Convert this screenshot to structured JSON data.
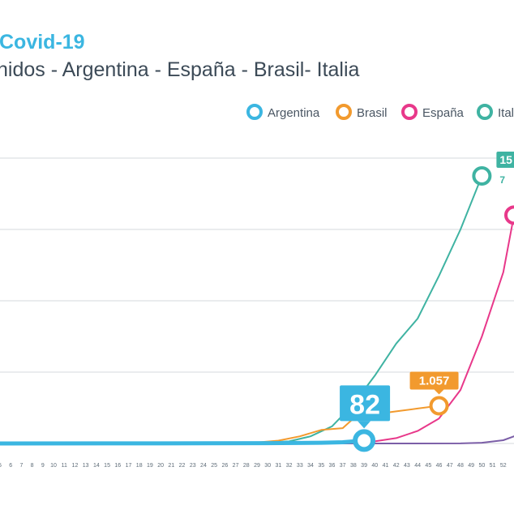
{
  "title": "Covid-19",
  "subtitle": "nidos - Argentina - España - Brasil- Italia",
  "chart_data": {
    "type": "line",
    "xlim": [
      5,
      53
    ],
    "ylim": [
      0,
      8000
    ],
    "grid": true,
    "legend_position": "top-right",
    "x_tick_labels": [
      "5",
      "6",
      "7",
      "8",
      "9",
      "10",
      "11",
      "12",
      "13",
      "14",
      "15",
      "16",
      "17",
      "18",
      "19",
      "20",
      "21",
      "22",
      "23",
      "24",
      "25",
      "26",
      "27",
      "28",
      "29",
      "30",
      "31",
      "32",
      "33",
      "34",
      "35",
      "36",
      "37",
      "38",
      "39",
      "40",
      "41",
      "42",
      "43",
      "44",
      "45",
      "46",
      "47",
      "48",
      "49",
      "50",
      "51",
      "52"
    ],
    "series": [
      {
        "name": "Argentina",
        "color": "#3bb6e1",
        "points": [
          [
            5,
            0
          ],
          [
            20,
            2
          ],
          [
            30,
            8
          ],
          [
            35,
            20
          ],
          [
            37,
            35
          ],
          [
            39,
            82
          ]
        ],
        "end_label": "82"
      },
      {
        "name": "Brasil",
        "color": "#f29a2e",
        "points": [
          [
            5,
            0
          ],
          [
            25,
            5
          ],
          [
            29,
            30
          ],
          [
            31,
            80
          ],
          [
            33,
            200
          ],
          [
            35,
            380
          ],
          [
            37,
            430
          ],
          [
            38,
            700
          ],
          [
            40,
            820
          ],
          [
            42,
            900
          ],
          [
            44,
            980
          ],
          [
            46,
            1057
          ]
        ],
        "end_label": "1.057"
      },
      {
        "name": "España",
        "color": "#e8388a",
        "points": [
          [
            5,
            0
          ],
          [
            30,
            5
          ],
          [
            36,
            20
          ],
          [
            40,
            60
          ],
          [
            42,
            150
          ],
          [
            44,
            350
          ],
          [
            46,
            700
          ],
          [
            48,
            1500
          ],
          [
            50,
            3000
          ],
          [
            52,
            4800
          ],
          [
            53,
            6400
          ]
        ],
        "end_label": ""
      },
      {
        "name": "Italia",
        "color": "#3fb3a2",
        "points": [
          [
            5,
            0
          ],
          [
            28,
            5
          ],
          [
            32,
            60
          ],
          [
            34,
            200
          ],
          [
            36,
            480
          ],
          [
            38,
            1100
          ],
          [
            40,
            1900
          ],
          [
            42,
            2800
          ],
          [
            44,
            3500
          ],
          [
            46,
            4700
          ],
          [
            48,
            6000
          ],
          [
            50,
            7500
          ]
        ],
        "end_label": "15",
        "end_sublabel": "7"
      },
      {
        "name": "",
        "color": "#7b5ea7",
        "points": [
          [
            5,
            0
          ],
          [
            40,
            0
          ],
          [
            48,
            3
          ],
          [
            50,
            20
          ],
          [
            52,
            90
          ],
          [
            53,
            200
          ]
        ],
        "end_label": ""
      }
    ]
  }
}
